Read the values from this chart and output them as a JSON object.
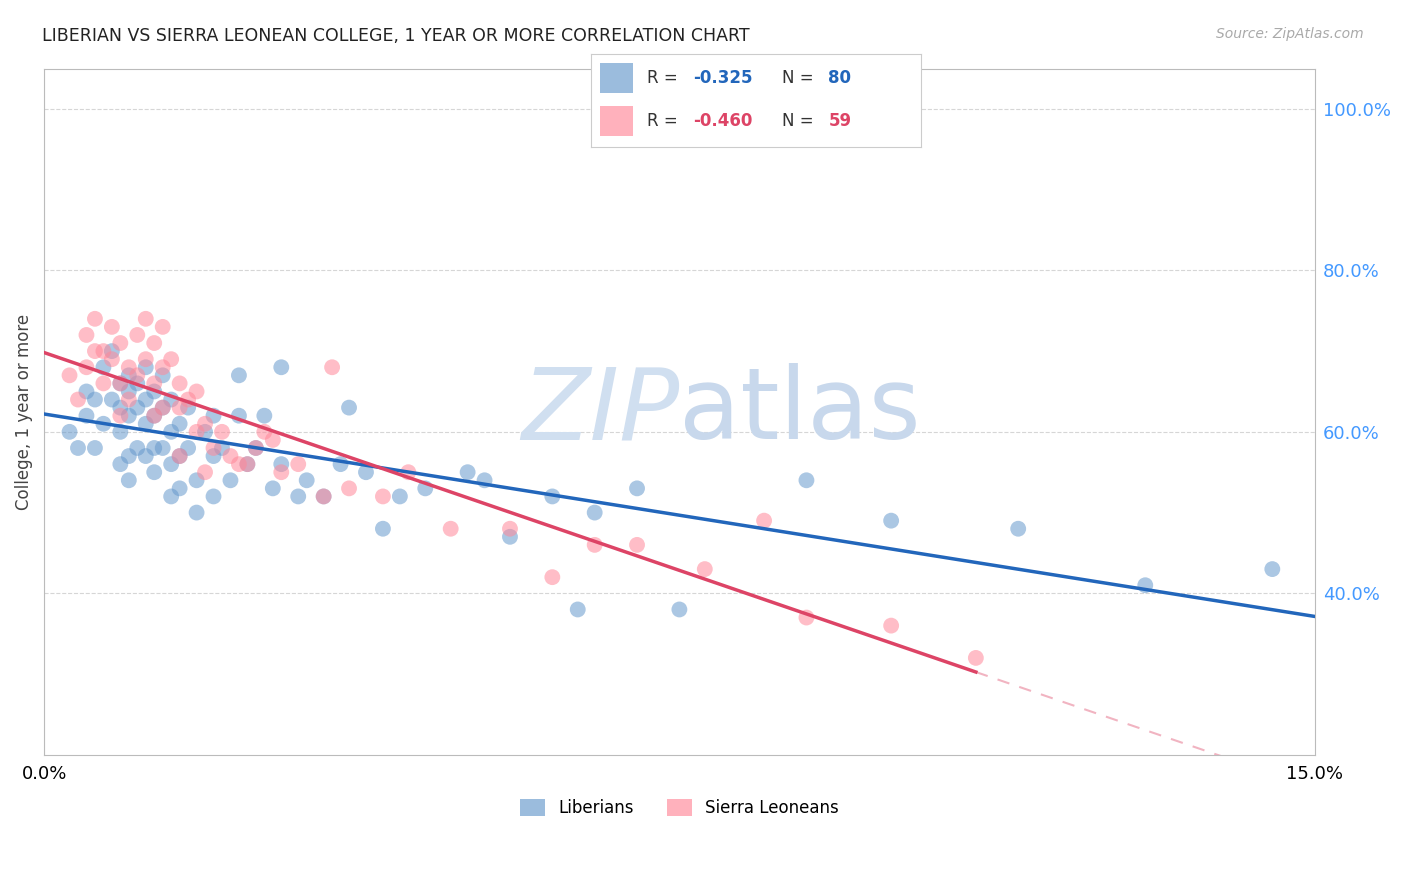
{
  "title": "LIBERIAN VS SIERRA LEONEAN COLLEGE, 1 YEAR OR MORE CORRELATION CHART",
  "source": "Source: ZipAtlas.com",
  "ylabel": "College, 1 year or more",
  "xlim": [
    0.0,
    0.15
  ],
  "ylim": [
    0.2,
    1.05
  ],
  "yticklabels_right": [
    "100.0%",
    "80.0%",
    "60.0%",
    "40.0%"
  ],
  "ytick_positions_right": [
    1.0,
    0.8,
    0.6,
    0.4
  ],
  "liberian_R": -0.325,
  "liberian_N": 80,
  "sierra_R": -0.46,
  "sierra_N": 59,
  "blue_color": "#6699CC",
  "pink_color": "#FF8899",
  "blue_line_color": "#2266BB",
  "pink_line_color": "#DD4466",
  "grid_color": "#CCCCCC",
  "background_color": "#FFFFFF",
  "right_axis_color": "#4499FF",
  "liberian_x": [
    0.003,
    0.004,
    0.005,
    0.005,
    0.006,
    0.006,
    0.007,
    0.007,
    0.008,
    0.008,
    0.009,
    0.009,
    0.009,
    0.009,
    0.01,
    0.01,
    0.01,
    0.01,
    0.01,
    0.011,
    0.011,
    0.011,
    0.012,
    0.012,
    0.012,
    0.012,
    0.013,
    0.013,
    0.013,
    0.013,
    0.014,
    0.014,
    0.014,
    0.015,
    0.015,
    0.015,
    0.015,
    0.016,
    0.016,
    0.016,
    0.017,
    0.017,
    0.018,
    0.018,
    0.019,
    0.02,
    0.02,
    0.02,
    0.021,
    0.022,
    0.023,
    0.023,
    0.024,
    0.025,
    0.026,
    0.027,
    0.028,
    0.028,
    0.03,
    0.031,
    0.033,
    0.035,
    0.036,
    0.038,
    0.04,
    0.042,
    0.045,
    0.05,
    0.052,
    0.055,
    0.06,
    0.063,
    0.065,
    0.07,
    0.075,
    0.09,
    0.1,
    0.115,
    0.13,
    0.145
  ],
  "liberian_y": [
    0.6,
    0.58,
    0.62,
    0.65,
    0.64,
    0.58,
    0.68,
    0.61,
    0.7,
    0.64,
    0.66,
    0.63,
    0.6,
    0.56,
    0.65,
    0.67,
    0.62,
    0.57,
    0.54,
    0.66,
    0.63,
    0.58,
    0.68,
    0.64,
    0.61,
    0.57,
    0.65,
    0.62,
    0.58,
    0.55,
    0.67,
    0.63,
    0.58,
    0.64,
    0.6,
    0.56,
    0.52,
    0.61,
    0.57,
    0.53,
    0.63,
    0.58,
    0.54,
    0.5,
    0.6,
    0.62,
    0.57,
    0.52,
    0.58,
    0.54,
    0.67,
    0.62,
    0.56,
    0.58,
    0.62,
    0.53,
    0.68,
    0.56,
    0.52,
    0.54,
    0.52,
    0.56,
    0.63,
    0.55,
    0.48,
    0.52,
    0.53,
    0.55,
    0.54,
    0.47,
    0.52,
    0.38,
    0.5,
    0.53,
    0.38,
    0.54,
    0.49,
    0.48,
    0.41,
    0.43
  ],
  "sierra_x": [
    0.003,
    0.004,
    0.005,
    0.005,
    0.006,
    0.006,
    0.007,
    0.007,
    0.008,
    0.008,
    0.009,
    0.009,
    0.009,
    0.01,
    0.01,
    0.011,
    0.011,
    0.012,
    0.012,
    0.013,
    0.013,
    0.013,
    0.014,
    0.014,
    0.014,
    0.015,
    0.016,
    0.016,
    0.016,
    0.017,
    0.018,
    0.018,
    0.019,
    0.019,
    0.02,
    0.021,
    0.022,
    0.023,
    0.024,
    0.025,
    0.026,
    0.027,
    0.028,
    0.03,
    0.033,
    0.034,
    0.036,
    0.04,
    0.043,
    0.048,
    0.055,
    0.06,
    0.065,
    0.07,
    0.078,
    0.085,
    0.09,
    0.1,
    0.11
  ],
  "sierra_y": [
    0.67,
    0.64,
    0.72,
    0.68,
    0.74,
    0.7,
    0.7,
    0.66,
    0.73,
    0.69,
    0.71,
    0.66,
    0.62,
    0.68,
    0.64,
    0.72,
    0.67,
    0.74,
    0.69,
    0.71,
    0.66,
    0.62,
    0.73,
    0.68,
    0.63,
    0.69,
    0.66,
    0.63,
    0.57,
    0.64,
    0.65,
    0.6,
    0.61,
    0.55,
    0.58,
    0.6,
    0.57,
    0.56,
    0.56,
    0.58,
    0.6,
    0.59,
    0.55,
    0.56,
    0.52,
    0.68,
    0.53,
    0.52,
    0.55,
    0.48,
    0.48,
    0.42,
    0.46,
    0.46,
    0.43,
    0.49,
    0.37,
    0.36,
    0.32
  ]
}
